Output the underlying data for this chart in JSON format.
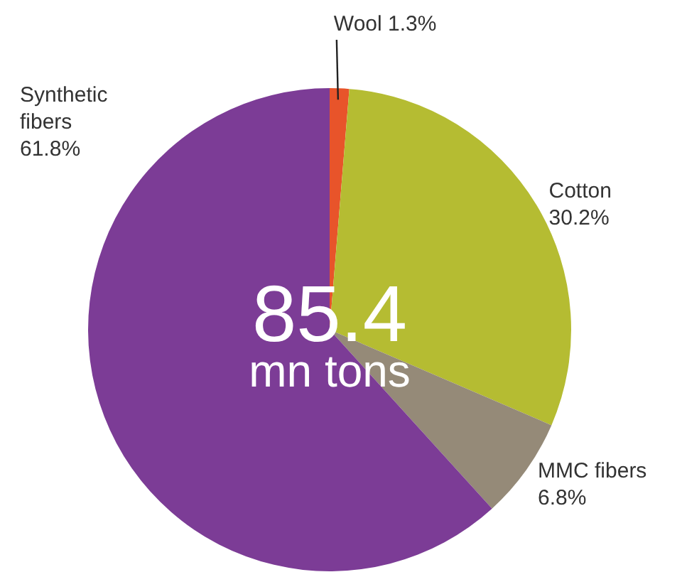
{
  "chart_data": {
    "type": "pie",
    "categories": [
      "Wool",
      "Cotton",
      "MMC fibers",
      "Synthetic fibers"
    ],
    "values": [
      1.3,
      30.2,
      6.8,
      61.8
    ],
    "colors": [
      "#e8542a",
      "#b5bc32",
      "#958a78",
      "#7c3c96"
    ],
    "value_labels": [
      "1.3%",
      "30.2%",
      "6.8%",
      "61.8%"
    ],
    "annotations": [
      "85.4",
      "mn tons"
    ],
    "legend": false
  }
}
